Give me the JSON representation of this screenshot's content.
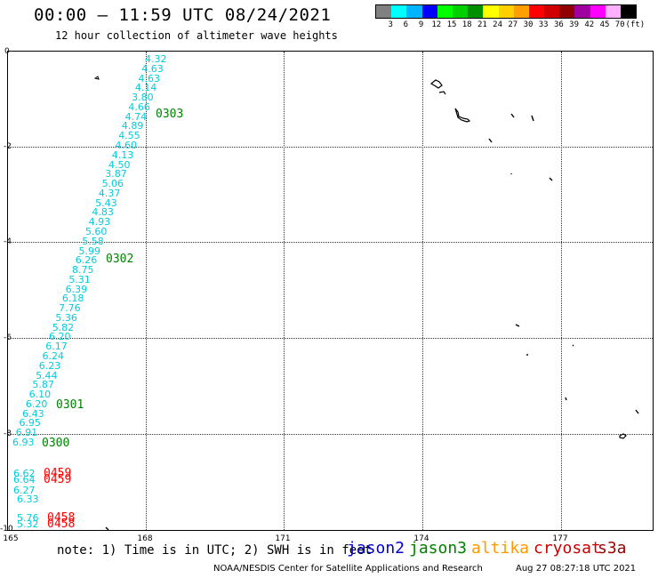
{
  "header": {
    "title": "00:00 — 11:59 UTC 08/24/2021",
    "subtitle": "12 hour collection of altimeter wave heights"
  },
  "legend": {
    "colors": [
      "#808080",
      "#00ffff",
      "#00b4ff",
      "#0000ff",
      "#00ff00",
      "#00d000",
      "#009000",
      "#ffff00",
      "#ffd000",
      "#ffa000",
      "#ff0000",
      "#d00000",
      "#900000",
      "#a000a0",
      "#ff00ff",
      "#ffb0ff",
      "#000000"
    ],
    "labels": [
      "3",
      "6",
      "9",
      "12",
      "15",
      "18",
      "21",
      "24",
      "27",
      "30",
      "33",
      "36",
      "39",
      "42",
      "45",
      "70",
      "(ft)"
    ]
  },
  "map": {
    "y_labels": [
      "0",
      "-2",
      "-4",
      "-6",
      "-8",
      "-10"
    ],
    "x_labels": [
      "165",
      "168",
      "171",
      "174",
      "177"
    ],
    "obs_color": "#00ccdd",
    "jason3_color": "#008000",
    "cryosat_color": "#ff0000",
    "observations": [
      "4.32",
      "4.63",
      "4.63",
      "4.14",
      "3.80",
      "4.66",
      "4.74",
      "4.89",
      "4.55",
      "4.60",
      "4.13",
      "4.50",
      "3.87",
      "5.06",
      "4.37",
      "5.43",
      "4.83",
      "4.93",
      "5.60",
      "5.58",
      "5.99",
      "6.26",
      "8.75",
      "5.31",
      "6.39",
      "6.18",
      "7.76",
      "5.36",
      "5.82",
      "6.20",
      "6.17",
      "6.24",
      "6.23",
      "5.44",
      "5.87",
      "6.10",
      "6.20",
      "6.43",
      "6.95",
      "6.91",
      "6.93"
    ],
    "lower_obs": [
      "6.62",
      "6.64",
      "6.27",
      "6.33",
      "5.76",
      "5.32"
    ],
    "time_labels": {
      "j3_a": "0303",
      "j3_b": "0302",
      "j3_c": "0301",
      "j3_d": "0300",
      "cs_a": "0459",
      "cs_b": "0459",
      "cs_c": "0458",
      "cs_d": "0458"
    }
  },
  "footer": {
    "note": "note: 1) Time is in UTC; 2) SWH is in feet",
    "satellites": [
      {
        "name": "jason2",
        "color": "#0000cc"
      },
      {
        "name": "jason3",
        "color": "#008000"
      },
      {
        "name": "altika",
        "color": "#ff9900"
      },
      {
        "name": "cryosat",
        "color": "#cc0000"
      },
      {
        "name": "s3a",
        "color": "#990000"
      }
    ],
    "credit": "NOAA/NESDIS Center for Satellite Applications and Research",
    "timestamp": "Aug 27 08:27:18 UTC 2021"
  }
}
